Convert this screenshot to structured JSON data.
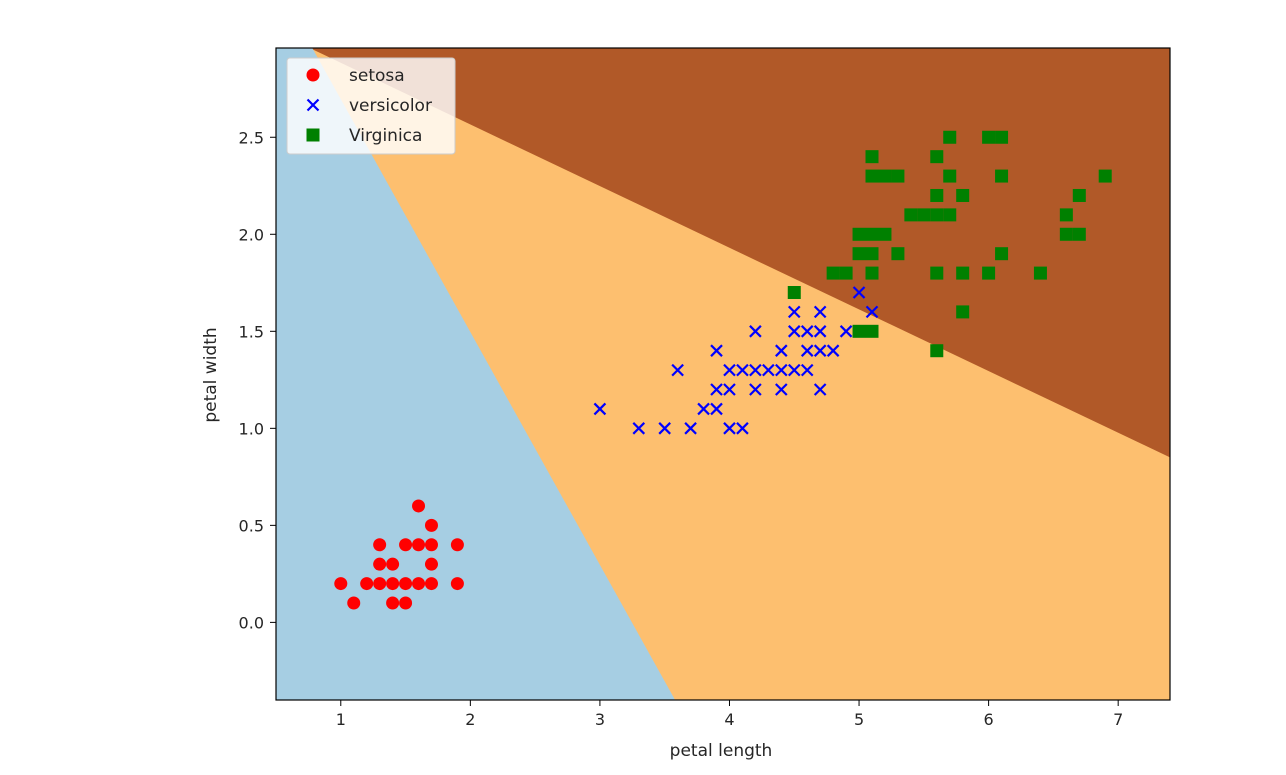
{
  "chart_data": {
    "type": "scatter",
    "title": "",
    "xlabel": "petal length",
    "ylabel": "petal width",
    "xlim": [
      0.5,
      7.4
    ],
    "ylim": [
      -0.4,
      2.96
    ],
    "xticks": [
      1,
      2,
      3,
      4,
      5,
      6,
      7
    ],
    "yticks": [
      0.0,
      0.5,
      1.0,
      1.5,
      2.0,
      2.5
    ],
    "xtick_labels": [
      "1",
      "2",
      "3",
      "4",
      "5",
      "6",
      "7"
    ],
    "ytick_labels": [
      "0.0",
      "0.5",
      "1.0",
      "1.5",
      "2.0",
      "2.5"
    ],
    "grid": false,
    "legend_position": "upper-left",
    "decision_regions": [
      {
        "class": "setosa",
        "color": "#a6cee3"
      },
      {
        "class": "versicolor",
        "color": "#fdbf6f"
      },
      {
        "class": "virginica",
        "color": "#b15928"
      }
    ],
    "boundaries": {
      "setosa_versicolor": [
        [
          0.78,
          2.96
        ],
        [
          3.58,
          -0.4
        ]
      ],
      "versicolor_virginica": [
        [
          0.76,
          2.96
        ],
        [
          7.4,
          0.85
        ]
      ]
    },
    "series": [
      {
        "name": "setosa",
        "marker": "circle",
        "color": "#ff0000",
        "points": [
          [
            1.0,
            0.2
          ],
          [
            1.1,
            0.1
          ],
          [
            1.2,
            0.2
          ],
          [
            1.3,
            0.2
          ],
          [
            1.3,
            0.3
          ],
          [
            1.3,
            0.4
          ],
          [
            1.4,
            0.2
          ],
          [
            1.4,
            0.3
          ],
          [
            1.5,
            0.1
          ],
          [
            1.4,
            0.1
          ],
          [
            1.5,
            0.2
          ],
          [
            1.5,
            0.4
          ],
          [
            1.6,
            0.2
          ],
          [
            1.6,
            0.4
          ],
          [
            1.6,
            0.6
          ],
          [
            1.7,
            0.2
          ],
          [
            1.7,
            0.3
          ],
          [
            1.7,
            0.4
          ],
          [
            1.7,
            0.5
          ],
          [
            1.9,
            0.2
          ],
          [
            1.9,
            0.4
          ]
        ]
      },
      {
        "name": "versicolor",
        "marker": "x",
        "color": "#0000ff",
        "points": [
          [
            3.0,
            1.1
          ],
          [
            3.3,
            1.0
          ],
          [
            3.5,
            1.0
          ],
          [
            3.6,
            1.3
          ],
          [
            3.7,
            1.0
          ],
          [
            3.8,
            1.1
          ],
          [
            3.9,
            1.1
          ],
          [
            3.9,
            1.2
          ],
          [
            3.9,
            1.4
          ],
          [
            4.0,
            1.0
          ],
          [
            4.0,
            1.2
          ],
          [
            4.0,
            1.3
          ],
          [
            4.1,
            1.0
          ],
          [
            4.1,
            1.3
          ],
          [
            4.2,
            1.2
          ],
          [
            4.2,
            1.3
          ],
          [
            4.2,
            1.5
          ],
          [
            4.3,
            1.3
          ],
          [
            4.4,
            1.2
          ],
          [
            4.4,
            1.3
          ],
          [
            4.4,
            1.4
          ],
          [
            4.5,
            1.3
          ],
          [
            4.5,
            1.5
          ],
          [
            4.5,
            1.6
          ],
          [
            4.6,
            1.3
          ],
          [
            4.6,
            1.4
          ],
          [
            4.6,
            1.5
          ],
          [
            4.7,
            1.2
          ],
          [
            4.7,
            1.4
          ],
          [
            4.7,
            1.5
          ],
          [
            4.7,
            1.6
          ],
          [
            4.8,
            1.4
          ],
          [
            4.9,
            1.5
          ],
          [
            5.0,
            1.7
          ],
          [
            5.1,
            1.6
          ]
        ]
      },
      {
        "name": "Virginica",
        "marker": "square",
        "color": "#008000",
        "points": [
          [
            4.5,
            1.7
          ],
          [
            4.8,
            1.8
          ],
          [
            4.9,
            1.8
          ],
          [
            5.0,
            1.5
          ],
          [
            5.0,
            2.0
          ],
          [
            5.0,
            1.9
          ],
          [
            5.1,
            1.5
          ],
          [
            5.1,
            1.8
          ],
          [
            5.1,
            1.9
          ],
          [
            5.1,
            2.0
          ],
          [
            5.1,
            2.3
          ],
          [
            5.1,
            2.4
          ],
          [
            5.2,
            2.0
          ],
          [
            5.2,
            2.3
          ],
          [
            5.3,
            1.9
          ],
          [
            5.3,
            2.3
          ],
          [
            5.4,
            2.1
          ],
          [
            5.5,
            2.1
          ],
          [
            5.6,
            1.4
          ],
          [
            5.6,
            1.8
          ],
          [
            5.6,
            2.1
          ],
          [
            5.6,
            2.2
          ],
          [
            5.6,
            2.4
          ],
          [
            5.7,
            2.1
          ],
          [
            5.7,
            2.3
          ],
          [
            5.7,
            2.5
          ],
          [
            5.8,
            1.6
          ],
          [
            5.8,
            1.8
          ],
          [
            5.8,
            2.2
          ],
          [
            6.0,
            1.8
          ],
          [
            6.0,
            2.5
          ],
          [
            6.1,
            1.9
          ],
          [
            6.1,
            2.3
          ],
          [
            6.1,
            2.5
          ],
          [
            6.4,
            1.8
          ],
          [
            6.6,
            2.0
          ],
          [
            6.6,
            2.1
          ],
          [
            6.7,
            2.0
          ],
          [
            6.7,
            2.2
          ],
          [
            6.9,
            2.3
          ]
        ]
      }
    ]
  }
}
